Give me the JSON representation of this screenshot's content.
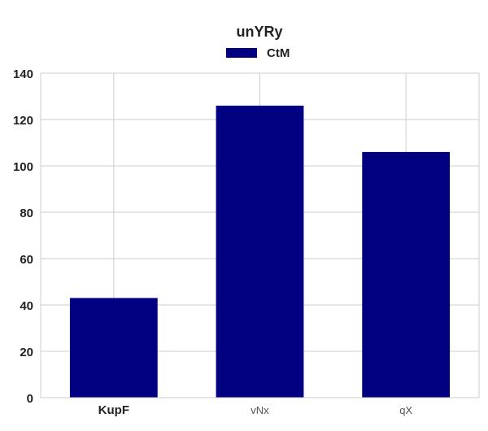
{
  "chart_data": {
    "type": "bar",
    "title": "unYRy",
    "xlabel": "",
    "ylabel": "",
    "categories": [
      "KupF",
      "vNx",
      "qX"
    ],
    "series": [
      {
        "name": "CtM",
        "values": [
          43,
          126,
          106
        ]
      }
    ],
    "ylim": [
      0,
      140
    ],
    "yticks": [
      0,
      20,
      40,
      60,
      80,
      100,
      120,
      140
    ],
    "grid": true,
    "legend_position": "top-center",
    "colors": {
      "bar": "#000080",
      "grid": "#cccccc",
      "axis": "#cccccc",
      "text": "#222222"
    }
  }
}
